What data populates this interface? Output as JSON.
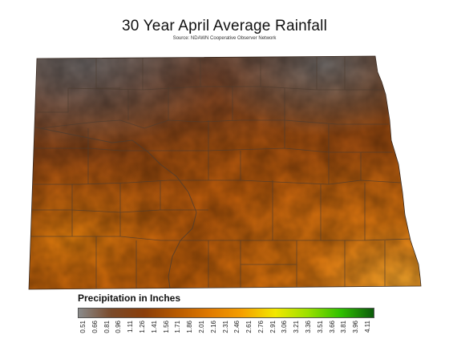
{
  "map": {
    "title": "30 Year April Average Rainfall",
    "subtitle": "Source: NDAWN Cooperative Observer Network"
  },
  "legend": {
    "title": "Precipitation in Inches",
    "ticks": [
      "0.51",
      "0.66",
      "0.81",
      "0.96",
      "1.11",
      "1.26",
      "1.41",
      "1.56",
      "1.71",
      "1.86",
      "2.01",
      "2.16",
      "2.31",
      "2.46",
      "2.61",
      "2.76",
      "2.91",
      "3.06",
      "3.21",
      "3.36",
      "3.51",
      "3.66",
      "3.81",
      "3.96",
      "4.11"
    ],
    "colors": [
      "#8a8a8a",
      "#7a4a2a",
      "#8a3e0a",
      "#b75a00",
      "#e07a00",
      "#f5a000",
      "#f2e800",
      "#9ae000",
      "#2fc000",
      "#0b5a0b"
    ]
  },
  "colors": {
    "dry": "#6a6464",
    "low": "#7a3d1c",
    "mid": "#b0520c",
    "high": "#e07a10",
    "peak": "#f5a020",
    "county_line": "#5a4a3a"
  }
}
